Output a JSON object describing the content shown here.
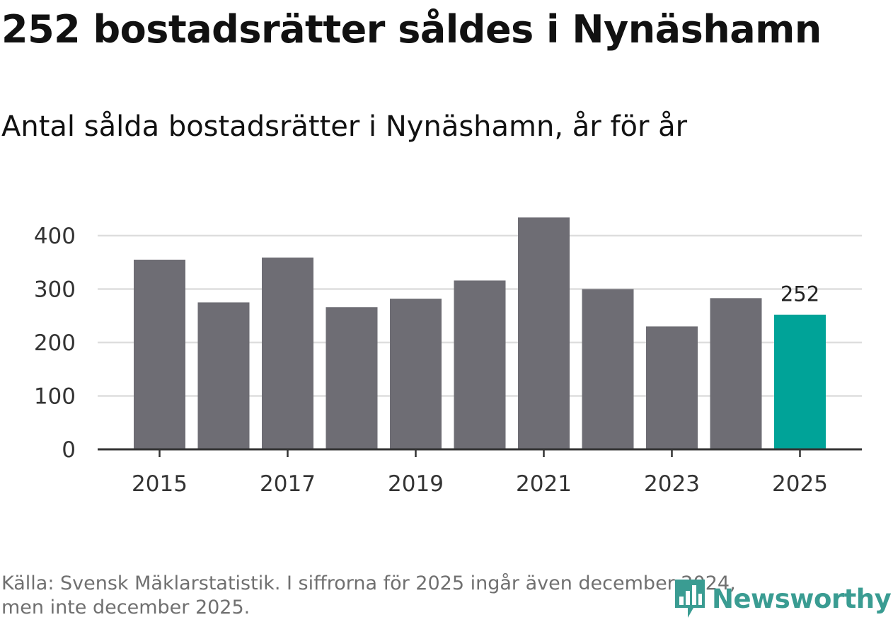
{
  "title": "252 bostadsrätter såldes i Nynäshamn",
  "subtitle": "Antal sålda bostadsrätter i Nynäshamn, år för år",
  "source_line1": "Källa: Svensk Mäklarstatistik. I siffrorna för 2025 ingår även december 2024,",
  "source_line2": "men inte december 2025.",
  "logo_text": "Newsworthy",
  "colors": {
    "bar": "#6e6d74",
    "highlight": "#00a398",
    "grid": "#dedede",
    "axis": "#333333",
    "logo": "#3a9c92"
  },
  "chart_data": {
    "type": "bar",
    "title": "Antal sålda bostadsrätter i Nynäshamn, år för år",
    "xlabel": "",
    "ylabel": "",
    "categories": [
      "2015",
      "2016",
      "2017",
      "2018",
      "2019",
      "2020",
      "2021",
      "2022",
      "2023",
      "2024",
      "2025"
    ],
    "values": [
      355,
      275,
      359,
      266,
      282,
      316,
      434,
      300,
      230,
      283,
      252
    ],
    "ylim": [
      0,
      450
    ],
    "yticks": [
      0,
      100,
      200,
      300,
      400
    ],
    "xtick_labels": [
      "2015",
      "2017",
      "2019",
      "2021",
      "2023",
      "2025"
    ],
    "highlight_category": "2025",
    "data_labels": [
      {
        "category": "2025",
        "text": "252"
      }
    ],
    "grid": true
  }
}
